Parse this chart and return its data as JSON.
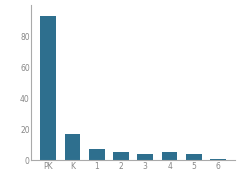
{
  "categories": [
    "PK",
    "K",
    "1",
    "2",
    "3",
    "4",
    "5",
    "6"
  ],
  "values": [
    93,
    17,
    7,
    5,
    4,
    5,
    4,
    1
  ],
  "bar_color": "#2e6f8e",
  "ylim": [
    0,
    100
  ],
  "yticks": [
    0,
    20,
    40,
    60,
    80
  ],
  "background_color": "#ffffff",
  "spine_color": "#aaaaaa"
}
